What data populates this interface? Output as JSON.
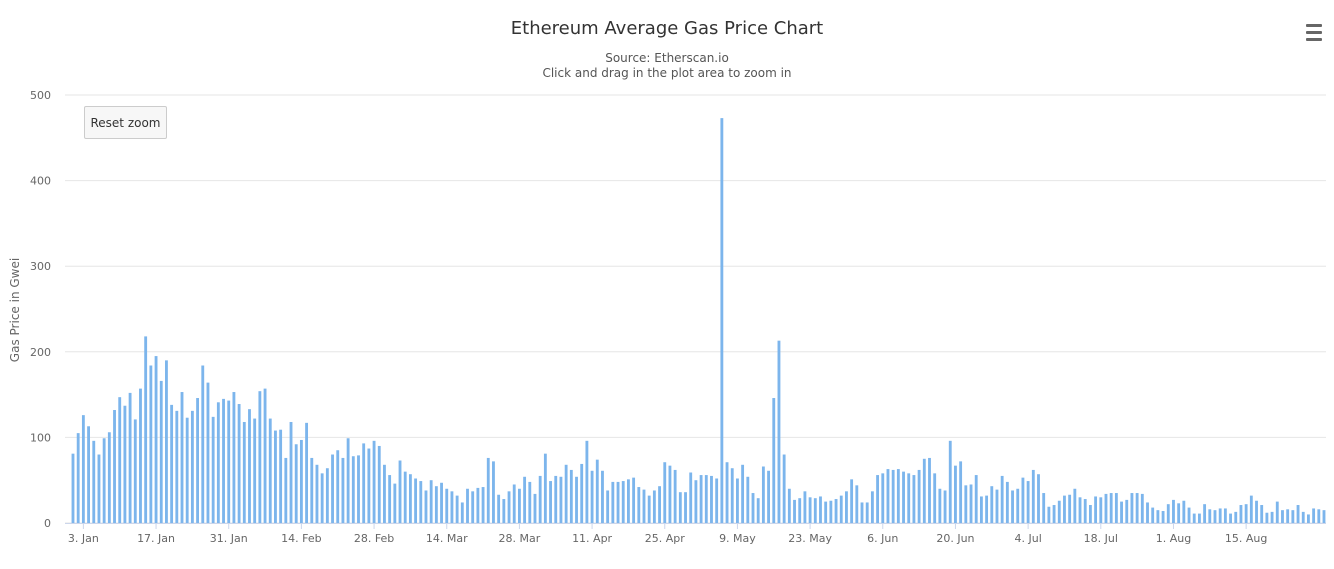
{
  "chart_data": {
    "type": "bar",
    "title": "Ethereum Average Gas Price Chart",
    "subtitle_source": "Source: Etherscan.io",
    "subtitle_hint": "Click and drag in the plot area to zoom in",
    "ylabel": "Gas Price in Gwei",
    "xlabel": "",
    "ylim": [
      0,
      500
    ],
    "y_ticks": [
      0,
      100,
      200,
      300,
      400,
      500
    ],
    "x_tick_labels": [
      "3. Jan",
      "17. Jan",
      "31. Jan",
      "14. Feb",
      "28. Feb",
      "14. Mar",
      "28. Mar",
      "11. Apr",
      "25. Apr",
      "9. May",
      "23. May",
      "6. Jun",
      "20. Jun",
      "4. Jul",
      "18. Jul",
      "1. Aug",
      "15. Aug"
    ],
    "grid": true,
    "legend": "none",
    "color": "#7cb5ec",
    "series": [
      {
        "values": [
          81,
          105,
          126,
          113,
          96,
          80,
          99,
          106,
          132,
          147,
          137,
          152,
          121,
          157,
          218,
          184,
          195,
          166,
          190,
          138,
          131,
          153,
          123,
          131,
          146,
          184,
          164,
          124,
          141,
          145,
          143,
          153,
          139,
          118,
          133,
          122,
          154,
          157,
          122,
          108,
          109,
          76,
          118,
          92,
          97,
          117,
          76,
          68,
          58,
          64,
          80,
          85,
          76,
          99,
          78,
          79,
          93,
          87,
          96,
          90,
          68,
          56,
          46,
          73,
          60,
          57,
          52,
          49,
          38,
          50,
          43,
          47,
          40,
          37,
          32,
          24,
          40,
          37,
          41,
          42,
          76,
          72,
          33,
          28,
          37,
          45,
          40,
          54,
          48,
          34,
          55,
          81,
          49,
          55,
          54,
          68,
          62,
          54,
          69,
          96,
          61,
          74,
          61,
          38,
          48,
          48,
          49,
          51,
          53,
          42,
          39,
          32,
          38,
          43,
          71,
          67,
          62,
          36,
          36,
          59,
          50,
          56,
          56,
          55,
          52,
          473,
          71,
          64,
          52,
          68,
          54,
          35,
          29,
          66,
          61,
          146,
          213,
          80,
          40,
          27,
          29,
          37,
          30,
          29,
          31,
          25,
          26,
          28,
          32,
          37,
          51,
          44,
          24,
          24,
          37,
          56,
          58,
          63,
          62,
          63,
          60,
          58,
          56,
          62,
          75,
          76,
          58,
          40,
          38,
          96,
          67,
          72,
          44,
          45,
          56,
          31,
          32,
          43,
          39,
          55,
          48,
          38,
          40,
          53,
          49,
          62,
          57,
          35,
          19,
          21,
          26,
          32,
          33,
          40,
          30,
          28,
          21,
          31,
          30,
          34,
          35,
          35,
          25,
          27,
          35,
          35,
          34,
          24,
          18,
          15,
          14,
          22,
          27,
          23,
          26,
          18,
          11,
          11,
          22,
          16,
          15,
          17,
          17,
          11,
          13,
          21,
          22,
          32,
          26,
          21,
          12,
          13,
          25,
          15,
          16,
          15,
          21,
          13,
          10,
          17,
          16,
          15
        ]
      }
    ]
  },
  "menu": {
    "icon": "hamburger-menu-icon"
  },
  "reset_zoom": {
    "label": "Reset zoom"
  }
}
